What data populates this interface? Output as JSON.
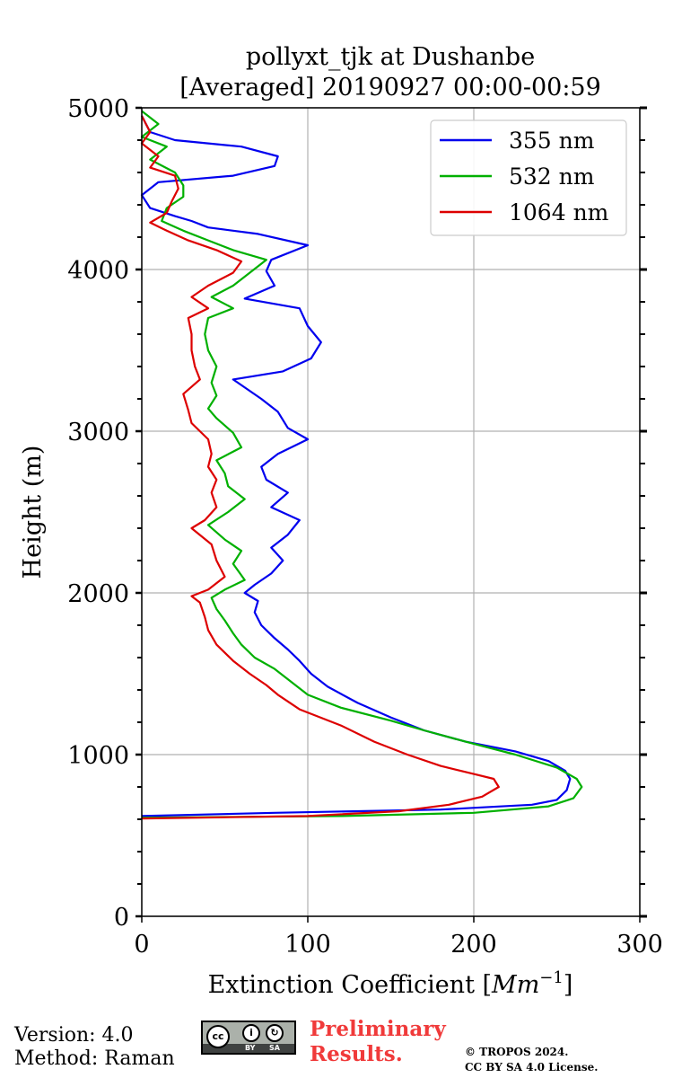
{
  "chart_data": {
    "type": "line",
    "title_line1": "pollyxt_tjk at Dushanbe",
    "title_line2": "[Averaged] 20190927 00:00-00:59",
    "xlabel_prefix": "Extinction Coefficient [",
    "xlabel_unit": "Mm",
    "xlabel_exp": "−1",
    "xlabel_suffix": "]",
    "ylabel": "Height (m)",
    "xlim": [
      0,
      300
    ],
    "ylim": [
      0,
      5000
    ],
    "xticks": [
      0,
      100,
      200,
      300
    ],
    "xtick_labels": [
      "0",
      "100",
      "200",
      "300"
    ],
    "yticks": [
      0,
      1000,
      2000,
      3000,
      4000,
      5000
    ],
    "ytick_labels": [
      "0",
      "1000",
      "2000",
      "3000",
      "4000",
      "5000"
    ],
    "grid": true,
    "legend_position": "top-right",
    "series": [
      {
        "name": "355 nm",
        "color": "#0000ee",
        "points": [
          [
            0,
            620
          ],
          [
            80,
            640
          ],
          [
            180,
            660
          ],
          [
            235,
            690
          ],
          [
            250,
            720
          ],
          [
            256,
            780
          ],
          [
            258,
            850
          ],
          [
            255,
            900
          ],
          [
            245,
            960
          ],
          [
            225,
            1020
          ],
          [
            195,
            1080
          ],
          [
            170,
            1150
          ],
          [
            150,
            1230
          ],
          [
            130,
            1320
          ],
          [
            112,
            1420
          ],
          [
            102,
            1500
          ],
          [
            95,
            1580
          ],
          [
            88,
            1650
          ],
          [
            80,
            1720
          ],
          [
            72,
            1800
          ],
          [
            68,
            1880
          ],
          [
            70,
            1950
          ],
          [
            62,
            2000
          ],
          [
            68,
            2050
          ],
          [
            78,
            2120
          ],
          [
            85,
            2200
          ],
          [
            78,
            2280
          ],
          [
            88,
            2360
          ],
          [
            95,
            2450
          ],
          [
            78,
            2530
          ],
          [
            88,
            2620
          ],
          [
            75,
            2700
          ],
          [
            72,
            2780
          ],
          [
            82,
            2860
          ],
          [
            100,
            2950
          ],
          [
            88,
            3020
          ],
          [
            82,
            3120
          ],
          [
            72,
            3200
          ],
          [
            55,
            3320
          ],
          [
            85,
            3370
          ],
          [
            102,
            3450
          ],
          [
            108,
            3550
          ],
          [
            100,
            3650
          ],
          [
            95,
            3760
          ],
          [
            62,
            3820
          ],
          [
            80,
            3900
          ],
          [
            75,
            3990
          ],
          [
            78,
            4060
          ],
          [
            100,
            4150
          ],
          [
            70,
            4220
          ],
          [
            40,
            4260
          ],
          [
            30,
            4300
          ],
          [
            20,
            4330
          ],
          [
            5,
            4380
          ],
          [
            0,
            4460
          ],
          [
            10,
            4540
          ],
          [
            55,
            4580
          ],
          [
            80,
            4640
          ],
          [
            82,
            4700
          ],
          [
            60,
            4760
          ],
          [
            20,
            4800
          ],
          [
            5,
            4850
          ],
          [
            0,
            4950
          ]
        ]
      },
      {
        "name": "532 nm",
        "color": "#00b000",
        "points": [
          [
            0,
            610
          ],
          [
            120,
            620
          ],
          [
            200,
            640
          ],
          [
            245,
            680
          ],
          [
            260,
            730
          ],
          [
            265,
            800
          ],
          [
            262,
            850
          ],
          [
            250,
            920
          ],
          [
            225,
            1000
          ],
          [
            195,
            1080
          ],
          [
            170,
            1150
          ],
          [
            150,
            1210
          ],
          [
            120,
            1290
          ],
          [
            100,
            1370
          ],
          [
            90,
            1450
          ],
          [
            80,
            1530
          ],
          [
            68,
            1600
          ],
          [
            60,
            1680
          ],
          [
            55,
            1750
          ],
          [
            50,
            1830
          ],
          [
            45,
            1900
          ],
          [
            42,
            1970
          ],
          [
            50,
            2020
          ],
          [
            62,
            2080
          ],
          [
            55,
            2180
          ],
          [
            60,
            2260
          ],
          [
            50,
            2330
          ],
          [
            40,
            2420
          ],
          [
            52,
            2500
          ],
          [
            62,
            2580
          ],
          [
            52,
            2660
          ],
          [
            50,
            2740
          ],
          [
            45,
            2820
          ],
          [
            60,
            2900
          ],
          [
            55,
            2990
          ],
          [
            45,
            3080
          ],
          [
            40,
            3140
          ],
          [
            45,
            3220
          ],
          [
            42,
            3300
          ],
          [
            45,
            3400
          ],
          [
            40,
            3500
          ],
          [
            38,
            3600
          ],
          [
            40,
            3700
          ],
          [
            55,
            3760
          ],
          [
            42,
            3830
          ],
          [
            55,
            3900
          ],
          [
            65,
            3980
          ],
          [
            75,
            4060
          ],
          [
            55,
            4120
          ],
          [
            40,
            4180
          ],
          [
            25,
            4240
          ],
          [
            12,
            4300
          ],
          [
            15,
            4380
          ],
          [
            25,
            4450
          ],
          [
            25,
            4520
          ],
          [
            20,
            4600
          ],
          [
            5,
            4680
          ],
          [
            15,
            4760
          ],
          [
            0,
            4820
          ],
          [
            10,
            4900
          ],
          [
            0,
            4980
          ]
        ]
      },
      {
        "name": "1064 nm",
        "color": "#dd0000",
        "points": [
          [
            0,
            605
          ],
          [
            100,
            620
          ],
          [
            155,
            650
          ],
          [
            185,
            690
          ],
          [
            205,
            740
          ],
          [
            215,
            800
          ],
          [
            212,
            850
          ],
          [
            200,
            880
          ],
          [
            180,
            930
          ],
          [
            160,
            1000
          ],
          [
            140,
            1080
          ],
          [
            120,
            1180
          ],
          [
            95,
            1280
          ],
          [
            82,
            1370
          ],
          [
            75,
            1430
          ],
          [
            65,
            1500
          ],
          [
            55,
            1580
          ],
          [
            45,
            1680
          ],
          [
            40,
            1770
          ],
          [
            38,
            1850
          ],
          [
            35,
            1940
          ],
          [
            30,
            1980
          ],
          [
            40,
            2020
          ],
          [
            50,
            2100
          ],
          [
            45,
            2200
          ],
          [
            42,
            2300
          ],
          [
            30,
            2400
          ],
          [
            38,
            2450
          ],
          [
            45,
            2530
          ],
          [
            42,
            2620
          ],
          [
            45,
            2700
          ],
          [
            40,
            2780
          ],
          [
            42,
            2860
          ],
          [
            40,
            2950
          ],
          [
            30,
            3050
          ],
          [
            28,
            3130
          ],
          [
            25,
            3230
          ],
          [
            35,
            3320
          ],
          [
            32,
            3400
          ],
          [
            30,
            3500
          ],
          [
            30,
            3600
          ],
          [
            28,
            3700
          ],
          [
            40,
            3760
          ],
          [
            30,
            3830
          ],
          [
            40,
            3900
          ],
          [
            55,
            3980
          ],
          [
            60,
            4050
          ],
          [
            45,
            4120
          ],
          [
            28,
            4180
          ],
          [
            15,
            4240
          ],
          [
            5,
            4290
          ],
          [
            15,
            4350
          ],
          [
            18,
            4420
          ],
          [
            22,
            4500
          ],
          [
            20,
            4580
          ],
          [
            5,
            4630
          ],
          [
            10,
            4700
          ],
          [
            0,
            4780
          ],
          [
            5,
            4850
          ],
          [
            0,
            4950
          ]
        ]
      }
    ]
  },
  "footer": {
    "version": "Version: 4.0",
    "method": "Method: Raman",
    "cc_by": "BY",
    "cc_sa": "SA",
    "preliminary_line1": "Preliminary",
    "preliminary_line2": "Results.",
    "copyright_line1": "© TROPOS 2024.",
    "copyright_line2": "CC BY SA 4.0 License."
  }
}
